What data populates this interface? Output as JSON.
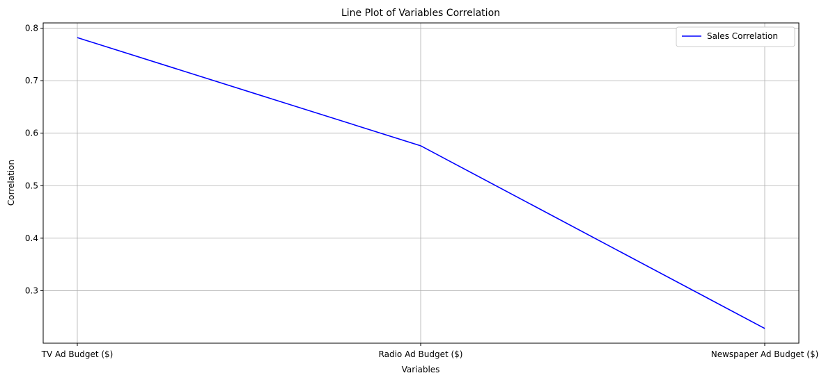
{
  "chart_data": {
    "type": "line",
    "title": "Line Plot of Variables Correlation",
    "xlabel": "Variables",
    "ylabel": "Correlation",
    "categories": [
      "TV Ad Budget ($)",
      "Radio Ad Budget ($)",
      "Newspaper Ad Budget ($)"
    ],
    "series": [
      {
        "name": "Sales Correlation",
        "values": [
          0.782,
          0.576,
          0.228
        ],
        "color": "#0000ff"
      }
    ],
    "ylim": [
      0.2,
      0.81
    ],
    "yticks": [
      "0.3",
      "0.4",
      "0.5",
      "0.6",
      "0.7",
      "0.8"
    ],
    "grid": true,
    "legend_position": "top-right"
  }
}
